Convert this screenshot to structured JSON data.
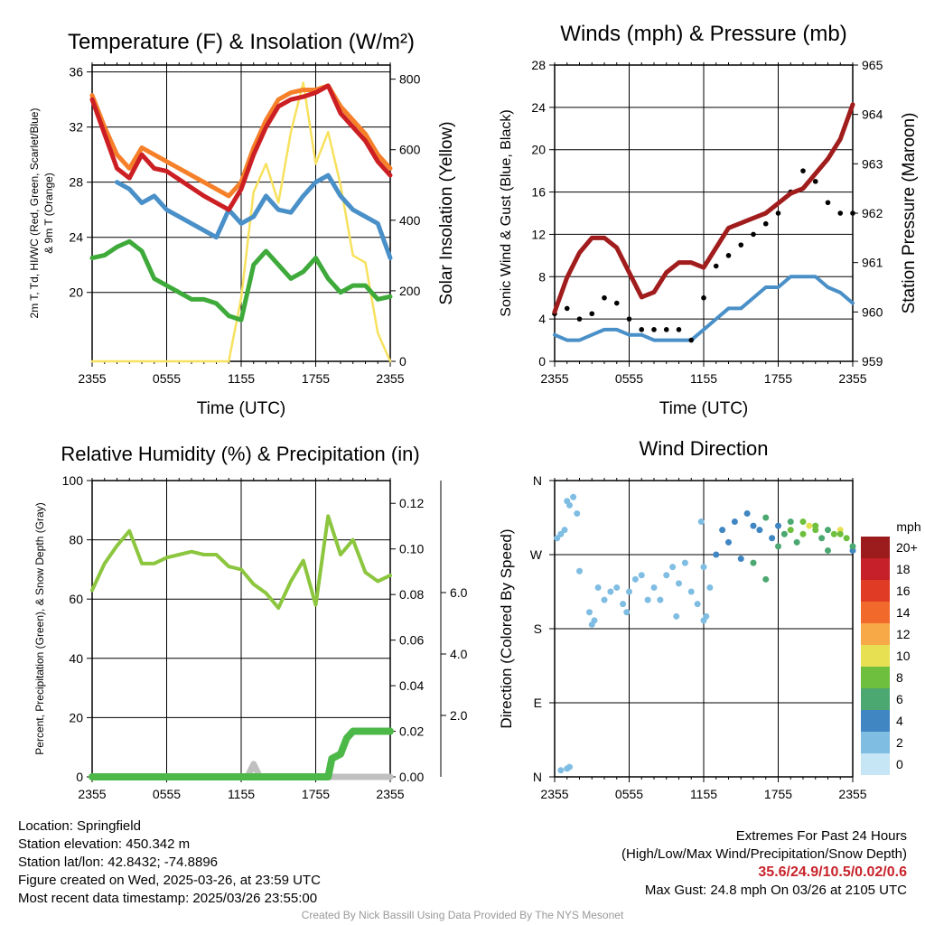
{
  "panels": {
    "temp": {
      "title": "Temperature (F) & Insolation (W/m²)",
      "ylabel_line1": "2m T, Td, HI/WC (Red, Green, Scarlet/Blue)",
      "ylabel_line2": "& 9m T (Orange)",
      "y2label": "Solar Insolation (Yellow)",
      "xlabel": "Time (UTC)"
    },
    "wind": {
      "title": "Winds (mph) & Pressure (mb)",
      "ylabel": "Sonic Wind & Gust (Blue, Black)",
      "y2label": "Station Pressure (Maroon)",
      "xlabel": "Time (UTC)"
    },
    "rh": {
      "title": "Relative Humidity (%) & Precipitation (in)",
      "ylabel": "Percent, Precipitation (Green), & Snow Depth (Gray)"
    },
    "dir": {
      "title": "Wind Direction",
      "ylabel": "Direction (Colored By Speed)",
      "colorbar_title": "mph"
    }
  },
  "chart_data": [
    {
      "type": "line",
      "title": "Temperature (F) & Insolation (W/m²)",
      "xlabel": "Time (UTC)",
      "x_ticks": [
        "2355",
        "0555",
        "1155",
        "1755",
        "2355"
      ],
      "ylim": [
        15,
        36.5
      ],
      "y_ticks": [
        20,
        24,
        28,
        32,
        36
      ],
      "y2lim": [
        0,
        840
      ],
      "y2_ticks": [
        0,
        200,
        400,
        600,
        800
      ],
      "grid": true,
      "colors": {
        "red": "#cc1f24",
        "orange": "#f58029",
        "blue": "#4a90c8",
        "green": "#3eaa3a",
        "yellow": "#f7e15e"
      },
      "series": [
        {
          "x": [
            0,
            1,
            2,
            3,
            4,
            5,
            6,
            7,
            8,
            9,
            10,
            11,
            12,
            13,
            14,
            15,
            16,
            17,
            18,
            19,
            20,
            21,
            22,
            23,
            24
          ],
          "values": [
            34,
            31.5,
            29,
            28.3,
            30,
            29,
            28.8,
            28.2,
            27.6,
            27,
            26.5,
            26,
            27.5,
            30,
            32,
            33.5,
            34,
            34.2,
            34.5,
            35,
            33,
            32,
            31,
            29.5,
            28.5
          ]
        },
        {
          "x": [
            0,
            1,
            2,
            3,
            4,
            5,
            6,
            7,
            8,
            9,
            10,
            11,
            12,
            13,
            14,
            15,
            16,
            17,
            18,
            19,
            20,
            21,
            22,
            23,
            24
          ],
          "values": [
            34.3,
            32,
            30,
            29,
            30.5,
            30,
            29.5,
            29,
            28.5,
            28,
            27.5,
            27,
            28,
            30.5,
            32.5,
            34,
            34.5,
            34.7,
            34.7,
            35,
            33.5,
            32.5,
            31.5,
            30,
            29
          ]
        },
        {
          "x": [
            2,
            3,
            4,
            5,
            6,
            7,
            8,
            9,
            10,
            11,
            12,
            13,
            14,
            15,
            16,
            17,
            18,
            19,
            20,
            21,
            22,
            23,
            24
          ],
          "values": [
            28,
            27.5,
            26.5,
            27,
            26,
            25.5,
            25,
            24.5,
            24,
            26,
            25,
            25.5,
            27,
            26,
            25.8,
            27,
            28,
            28.5,
            27,
            26,
            25.5,
            25,
            22.5
          ]
        },
        {
          "x": [
            0,
            1,
            2,
            3,
            4,
            5,
            6,
            7,
            8,
            9,
            10,
            11,
            12,
            13,
            14,
            15,
            16,
            17,
            18,
            19,
            20,
            21,
            22,
            23,
            24
          ],
          "values": [
            22.5,
            22.7,
            23.3,
            23.7,
            23,
            21,
            20.5,
            20,
            19.5,
            19.5,
            19.2,
            18.3,
            18,
            22,
            23,
            22,
            21,
            21.5,
            22.5,
            21,
            20,
            20.5,
            20.5,
            19.5,
            19.7
          ]
        },
        {
          "x": [
            0,
            11,
            12,
            13,
            14,
            15,
            16,
            17,
            18,
            19,
            20,
            21,
            22,
            23,
            24
          ],
          "values": [
            0,
            0,
            180,
            480,
            560,
            450,
            650,
            790,
            560,
            650,
            500,
            300,
            280,
            80,
            0
          ]
        }
      ]
    },
    {
      "type": "line",
      "title": "Winds (mph) & Pressure (mb)",
      "xlabel": "Time (UTC)",
      "x_ticks": [
        "2355",
        "0555",
        "1155",
        "1755",
        "2355"
      ],
      "ylim": [
        0,
        28
      ],
      "y_ticks": [
        0,
        4,
        8,
        12,
        16,
        20,
        24,
        28
      ],
      "y2lim": [
        959,
        965
      ],
      "y2_ticks": [
        959,
        960,
        961,
        962,
        963,
        964,
        965
      ],
      "grid": true,
      "colors": {
        "wind": "#4a90c8",
        "gust": "#000000",
        "pressure": "#a11d1d"
      },
      "series": [
        {
          "x": [
            0,
            1,
            2,
            3,
            4,
            5,
            6,
            7,
            8,
            9,
            10,
            11,
            12,
            13,
            14,
            15,
            16,
            17,
            18,
            19,
            20,
            21,
            22,
            23,
            24
          ],
          "values": [
            2.5,
            2,
            2,
            2.5,
            3,
            3,
            2.5,
            2.5,
            2,
            2,
            2,
            2,
            3,
            4,
            5,
            5,
            6,
            7,
            7,
            8,
            8,
            8,
            7,
            6.5,
            5.5
          ]
        },
        {
          "x": [
            0,
            1,
            2,
            3,
            4,
            5,
            6,
            7,
            8,
            9,
            10,
            11,
            12,
            13,
            14,
            15,
            16,
            17,
            18,
            19,
            20,
            21,
            22,
            23,
            24
          ],
          "values": [
            4.5,
            5,
            4,
            4.5,
            6,
            5.5,
            4,
            3,
            3,
            3,
            3,
            2,
            6,
            9,
            10,
            11,
            12,
            13,
            14,
            16,
            18,
            17,
            15,
            14,
            14
          ]
        },
        {
          "x": [
            0,
            1,
            2,
            3,
            4,
            5,
            6,
            7,
            8,
            9,
            10,
            11,
            12,
            13,
            14,
            15,
            16,
            17,
            18,
            19,
            20,
            21,
            22,
            23,
            24
          ],
          "values": [
            960,
            960.7,
            961.2,
            961.5,
            961.5,
            961.3,
            960.8,
            960.3,
            960.4,
            960.8,
            961.0,
            961.0,
            960.9,
            961.3,
            961.7,
            961.8,
            961.9,
            962.0,
            962.2,
            962.4,
            962.5,
            962.8,
            963.1,
            963.5,
            964.2
          ]
        }
      ]
    },
    {
      "type": "line",
      "title": "Relative Humidity (%) & Precipitation (in)",
      "x_ticks": [
        "2355",
        "0555",
        "1155",
        "1755",
        "2355"
      ],
      "ylim": [
        0,
        100
      ],
      "y_ticks": [
        0,
        20,
        40,
        60,
        80,
        100
      ],
      "y2lim": [
        0,
        0.13
      ],
      "y2_ticks": [
        "0.00",
        "0.02",
        "0.04",
        "0.06",
        "0.08",
        "0.10",
        "0.12"
      ],
      "y3_ticks": [
        "2.0",
        "4.0",
        "6.0"
      ],
      "grid": true,
      "colors": {
        "rh": "#8cc63f",
        "precip": "#4cb848",
        "snow": "#c0c0c0"
      },
      "series": [
        {
          "x": [
            0,
            1,
            2,
            3,
            4,
            5,
            6,
            7,
            8,
            9,
            10,
            11,
            12,
            13,
            14,
            15,
            16,
            17,
            18,
            19,
            20,
            21,
            22,
            23,
            24
          ],
          "values": [
            63,
            72,
            78,
            83,
            72,
            72,
            74,
            75,
            76,
            75,
            75,
            71,
            70,
            65,
            62,
            57,
            66,
            73,
            58,
            88,
            75,
            80,
            69,
            66,
            68
          ]
        },
        {
          "x": [
            0,
            19,
            19.3,
            20,
            20.5,
            21,
            22,
            23,
            24
          ],
          "values": [
            0,
            0,
            0.008,
            0.01,
            0.017,
            0.02,
            0.02,
            0.02,
            0.02
          ]
        },
        {
          "x": [
            0,
            12.5,
            13,
            13.5,
            24
          ],
          "values": [
            0,
            0,
            0.3,
            0,
            0
          ]
        }
      ]
    },
    {
      "type": "scatter",
      "title": "Wind Direction",
      "x_ticks": [
        "2355",
        "0555",
        "1155",
        "1755",
        "2355"
      ],
      "y_ticks": [
        "N",
        "E",
        "S",
        "W",
        "N"
      ],
      "ylim": [
        0,
        360
      ],
      "grid": true,
      "points": [
        [
          0.2,
          290,
          2
        ],
        [
          0.5,
          295,
          2
        ],
        [
          0.8,
          300,
          1
        ],
        [
          1.0,
          335,
          1
        ],
        [
          1.2,
          330,
          2
        ],
        [
          1.5,
          340,
          1
        ],
        [
          1.8,
          320,
          2
        ],
        [
          1.0,
          10,
          2
        ],
        [
          1.2,
          12,
          1
        ],
        [
          0.5,
          8,
          1
        ],
        [
          3,
          185,
          1
        ],
        [
          3.2,
          190,
          1
        ],
        [
          2.8,
          200,
          2
        ],
        [
          4,
          215,
          2
        ],
        [
          4.5,
          225,
          1
        ],
        [
          5,
          230,
          2
        ],
        [
          5.5,
          210,
          2
        ],
        [
          6,
          225,
          1
        ],
        [
          6.5,
          240,
          2
        ],
        [
          7,
          245,
          1
        ],
        [
          8,
          230,
          2
        ],
        [
          8.5,
          215,
          1
        ],
        [
          9,
          245,
          1
        ],
        [
          9.5,
          255,
          2
        ],
        [
          10,
          235,
          1
        ],
        [
          11,
          225,
          1
        ],
        [
          11.5,
          210,
          2
        ],
        [
          12,
          190,
          2
        ],
        [
          12.2,
          195,
          1
        ],
        [
          12.5,
          230,
          1
        ],
        [
          12,
          255,
          1
        ],
        [
          11.8,
          310,
          1
        ],
        [
          13,
          270,
          4
        ],
        [
          14,
          285,
          4
        ],
        [
          15,
          265,
          4
        ],
        [
          16,
          260,
          6
        ],
        [
          16.5,
          300,
          4
        ],
        [
          17,
          240,
          6
        ],
        [
          17.5,
          290,
          4
        ],
        [
          18,
          280,
          6
        ],
        [
          18.5,
          295,
          6
        ],
        [
          19,
          300,
          8
        ],
        [
          19.5,
          285,
          6
        ],
        [
          20,
          295,
          8
        ],
        [
          20.5,
          305,
          10
        ],
        [
          21,
          300,
          8
        ],
        [
          21.5,
          290,
          6
        ],
        [
          22,
          275,
          6
        ],
        [
          22.5,
          295,
          8
        ],
        [
          23,
          300,
          10
        ],
        [
          23.5,
          290,
          8
        ],
        [
          24,
          275,
          4
        ],
        [
          2,
          250,
          2
        ],
        [
          3.5,
          230,
          2
        ],
        [
          5.8,
          200,
          1
        ],
        [
          7.5,
          215,
          1
        ],
        [
          9.8,
          195,
          2
        ],
        [
          10.5,
          260,
          2
        ],
        [
          13.5,
          300,
          4
        ],
        [
          14.5,
          310,
          4
        ],
        [
          15.5,
          320,
          4
        ],
        [
          16,
          305,
          4
        ],
        [
          17,
          315,
          6
        ],
        [
          18,
          305,
          4
        ],
        [
          19,
          310,
          6
        ],
        [
          20,
          310,
          8
        ],
        [
          21,
          305,
          8
        ],
        [
          22,
          300,
          6
        ],
        [
          23,
          295,
          8
        ],
        [
          24,
          280,
          6
        ]
      ],
      "colorbar": {
        "labels": [
          "0",
          "2",
          "4",
          "6",
          "8",
          "10",
          "12",
          "14",
          "16",
          "18",
          "20+"
        ],
        "colors": [
          "#c6e5f5",
          "#7fbde3",
          "#3f86c2",
          "#4aa870",
          "#6fbf3f",
          "#e6e052",
          "#f8a947",
          "#f16a2c",
          "#e03b24",
          "#c6202a",
          "#9c1b1d"
        ]
      }
    }
  ],
  "info": {
    "location": "Location: Springfield",
    "elevation": "Station elevation: 450.342 m",
    "latlon": "Station lat/lon: 42.8432; -74.8896",
    "created": "Figure created on Wed, 2025-03-26, at 23:59 UTC",
    "recent": "Most recent data timestamp: 2025/03/26 23:55:00",
    "extremes_title": "Extremes For Past 24 Hours",
    "extremes_sub": "(High/Low/Max Wind/Precipitation/Snow Depth)",
    "extremes_vals": "35.6/24.9/10.5/0.02/0.6",
    "max_gust": "Max Gust: 24.8 mph On 03/26 at 2105 UTC"
  },
  "credit": "Created By Nick Bassill Using Data Provided By The NYS Mesonet"
}
